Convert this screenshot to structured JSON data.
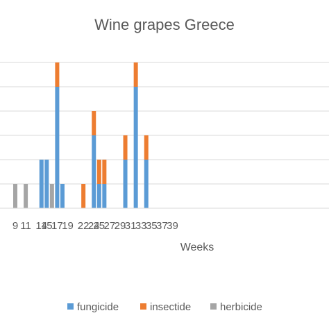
{
  "chart_data": {
    "type": "bar",
    "stacked": true,
    "title": "Wine grapes Greece",
    "xlabel": "Weeks",
    "ylabel": "",
    "ylim": [
      0,
      6
    ],
    "grid": true,
    "legend_position": "bottom",
    "x_tick_labels": [
      "9",
      "11",
      "14",
      "15",
      "17",
      "19",
      "22",
      "24",
      "25",
      "27",
      "29",
      "31",
      "33",
      "35",
      "37",
      "39"
    ],
    "categories": [
      "9",
      "10",
      "11",
      "12",
      "13",
      "14",
      "15",
      "16",
      "17",
      "18",
      "19",
      "20",
      "21",
      "22",
      "23",
      "24",
      "25",
      "26",
      "27",
      "28",
      "29",
      "30",
      "31",
      "32",
      "33",
      "34",
      "35",
      "36",
      "37",
      "38",
      "39"
    ],
    "series": [
      {
        "name": "fungicide",
        "color": "#5b9bd5",
        "values": [
          0,
          0,
          0,
          0,
          0,
          2,
          2,
          0,
          5,
          1,
          0,
          0,
          0,
          0,
          0,
          3,
          1,
          1,
          0,
          0,
          0,
          2,
          0,
          5,
          0,
          2,
          0,
          0,
          0,
          0,
          0
        ]
      },
      {
        "name": "insectide",
        "color": "#ed7d31",
        "values": [
          0,
          0,
          0,
          0,
          0,
          0,
          0,
          0,
          1,
          0,
          0,
          0,
          0,
          1,
          0,
          1,
          1,
          1,
          0,
          0,
          0,
          1,
          0,
          1,
          0,
          1,
          0,
          0,
          0,
          0,
          0
        ]
      },
      {
        "name": "herbicide",
        "color": "#a5a5a5",
        "values": [
          1,
          0,
          1,
          0,
          0,
          0,
          0,
          1,
          0,
          0,
          0,
          0,
          0,
          0,
          0,
          0,
          0,
          0,
          0,
          0,
          0,
          0,
          0,
          0,
          0,
          0,
          0,
          0,
          0,
          0,
          0
        ]
      }
    ]
  }
}
